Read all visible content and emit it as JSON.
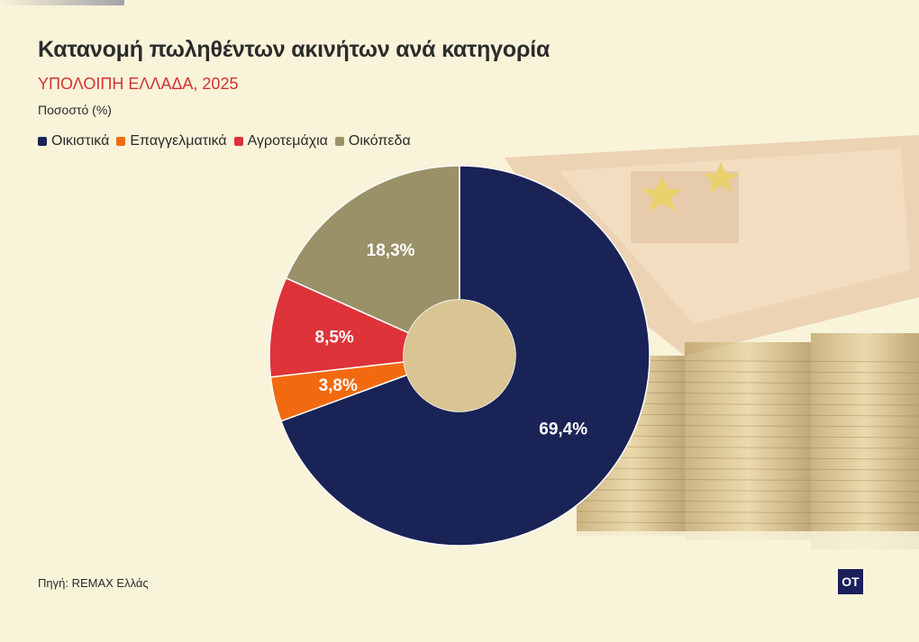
{
  "header": {
    "title": "Κατανομή πωληθέντων ακινήτων ανά κατηγορία",
    "subtitle": "ΥΠΟΛΟΙΠΗ ΕΛΛΑΔΑ, 2025",
    "unit": "Ποσοστό (%)"
  },
  "footer": {
    "source": "Πηγή: REMAX Ελλάς",
    "logo": "OT"
  },
  "colors": {
    "background": "#f8f3d9",
    "accent": "#1b1f5a"
  },
  "chart_data": {
    "type": "pie",
    "donut": true,
    "legend_position": "top-left",
    "categories": [
      "Οικιστικά",
      "Επαγγελματικά",
      "Αγροτεμάχια",
      "Οικόπεδα"
    ],
    "values": [
      69.4,
      3.8,
      8.5,
      18.3
    ],
    "labels": [
      "69,4%",
      "3,8%",
      "8,5%",
      "18,3%"
    ],
    "colors": [
      "#1a2356",
      "#f26a10",
      "#dd3339",
      "#9b9168"
    ]
  }
}
